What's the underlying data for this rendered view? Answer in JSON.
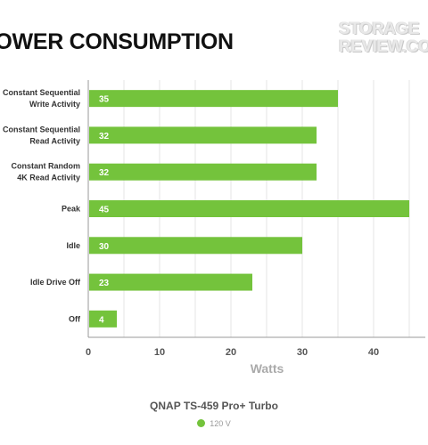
{
  "title": "POWER CONSUMPTION",
  "watermark": {
    "line1": "STORAGE",
    "line2": "REVIEW.COM"
  },
  "colors": {
    "bar": "#74c33c",
    "bar_label": "#ffffff",
    "grid": "#e6e6e6",
    "axis": "#999999",
    "category_label": "#333333",
    "tick_label": "#555555",
    "axis_title": "#aaaaaa"
  },
  "chart_data": {
    "type": "bar",
    "orientation": "horizontal",
    "title": "POWER CONSUMPTION",
    "categories": [
      "Constant Sequential\nWrite Activity",
      "Constant Sequential\nRead Activity",
      "Constant Random\n4K Read Activity",
      "Peak",
      "Idle",
      "Idle Drive Off",
      "Off"
    ],
    "series": [
      {
        "name": "120 V",
        "values": [
          35,
          32,
          32,
          45,
          30,
          23,
          4
        ]
      }
    ],
    "xlabel": "Watts",
    "ylabel": "",
    "xlim": [
      0,
      48
    ],
    "xticks": [
      0,
      10,
      20,
      30,
      40
    ],
    "grid": true,
    "legend": {
      "title": "QNAP TS-459 Pro+ Turbo",
      "placement": "bottom-center",
      "entries": [
        "120 V"
      ]
    }
  }
}
